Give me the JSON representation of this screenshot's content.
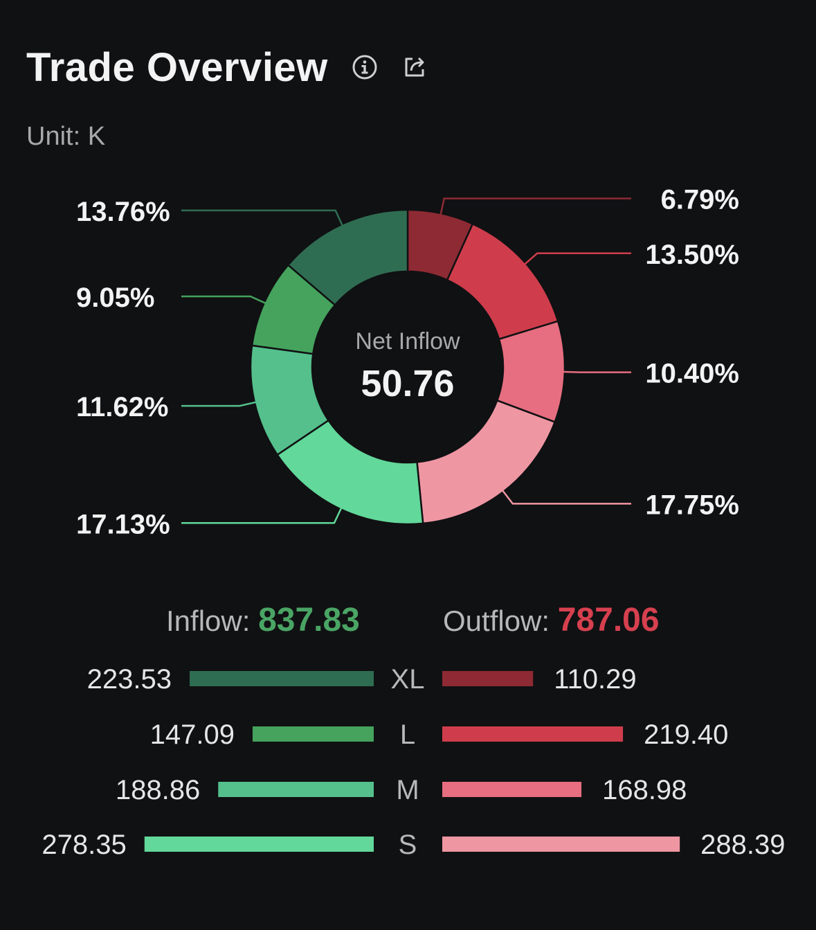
{
  "header": {
    "title": "Trade Overview",
    "info_icon": "info-circle-icon",
    "share_icon": "share-icon"
  },
  "unit_label": "Unit: K",
  "center": {
    "label": "Net Inflow",
    "value": "50.76"
  },
  "summary": {
    "inflow_label": "Inflow:",
    "inflow_value": "837.83",
    "outflow_label": "Outflow:",
    "outflow_value": "787.06"
  },
  "colors": {
    "inflow_value": "#4aa564",
    "outflow_value": "#d6404f",
    "background": "#101113"
  },
  "chart_data": [
    {
      "type": "pie",
      "donut": true,
      "slices": [
        {
          "label": "6.79%",
          "value": 6.79,
          "color": "#8e2a33"
        },
        {
          "label": "13.50%",
          "value": 13.5,
          "color": "#cf3d4c"
        },
        {
          "label": "10.40%",
          "value": 10.4,
          "color": "#e66e80"
        },
        {
          "label": "17.75%",
          "value": 17.75,
          "color": "#ef96a3"
        },
        {
          "label": "17.13%",
          "value": 17.13,
          "color": "#62d89a"
        },
        {
          "label": "11.62%",
          "value": 11.62,
          "color": "#55c08c"
        },
        {
          "label": "9.05%",
          "value": 9.05,
          "color": "#45a35d"
        },
        {
          "label": "13.76%",
          "value": 13.76,
          "color": "#2f6d52"
        }
      ]
    },
    {
      "type": "bar",
      "orientation": "horizontal",
      "categories": [
        "XL",
        "L",
        "M",
        "S"
      ],
      "series": [
        {
          "name": "Inflow",
          "values": [
            223.53,
            147.09,
            188.86,
            278.35
          ],
          "labels": [
            "223.53",
            "147.09",
            "188.86",
            "278.35"
          ],
          "colors": [
            "#2f6d52",
            "#45a35d",
            "#55c08c",
            "#62d89a"
          ]
        },
        {
          "name": "Outflow",
          "values": [
            110.29,
            219.4,
            168.98,
            288.39
          ],
          "labels": [
            "110.29",
            "219.40",
            "168.98",
            "288.39"
          ],
          "colors": [
            "#8e2a33",
            "#cf3d4c",
            "#e66e80",
            "#ef96a3"
          ]
        }
      ]
    }
  ]
}
